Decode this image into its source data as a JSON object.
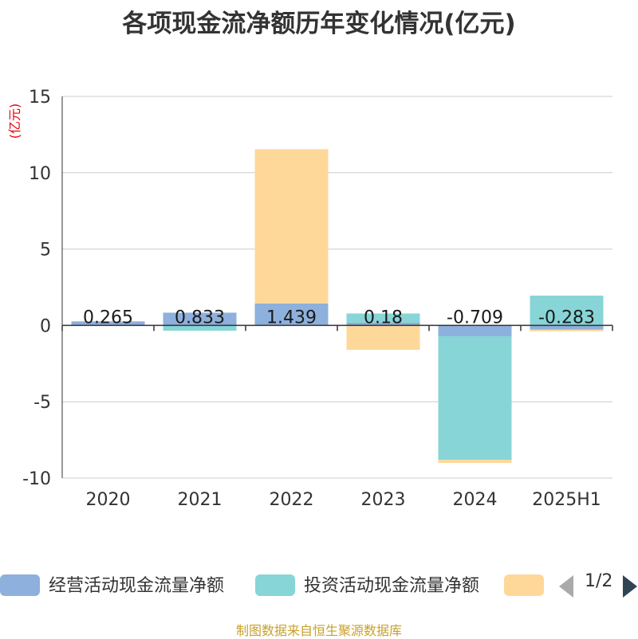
{
  "chart_data": {
    "type": "bar",
    "stacked": true,
    "title": "各项现金流净额历年变化情况(亿元)",
    "ylabel": "(亿元)",
    "ylim": [
      -10,
      15
    ],
    "yticks": [
      15,
      10,
      5,
      0,
      -5,
      -10
    ],
    "grid": true,
    "categories": [
      "2020",
      "2021",
      "2022",
      "2023",
      "2024",
      "2025H1"
    ],
    "series": [
      {
        "name": "经营活动现金流量净额",
        "color": "#8eb0dc",
        "values": [
          0.265,
          0.833,
          1.439,
          0.18,
          -0.709,
          -0.283
        ]
      },
      {
        "name": "投资活动现金流量净额",
        "color": "#87d5d7",
        "values": [
          0.0,
          -0.35,
          0.0,
          0.6,
          -8.1,
          1.95
        ]
      },
      {
        "name": "",
        "color": "#fed899",
        "values": [
          0.0,
          0.0,
          10.1,
          -1.6,
          -0.2,
          -0.1
        ]
      }
    ],
    "data_labels": [
      "0.265",
      "0.833",
      "1.439",
      "0.18",
      "-0.709",
      "-0.283"
    ],
    "legend_position": "bottom"
  },
  "legend": {
    "page_label": "1/2",
    "prev_icon": "triangle-left-icon",
    "next_icon": "triangle-right-icon"
  },
  "source": "制图数据来自恒生聚源数据库"
}
